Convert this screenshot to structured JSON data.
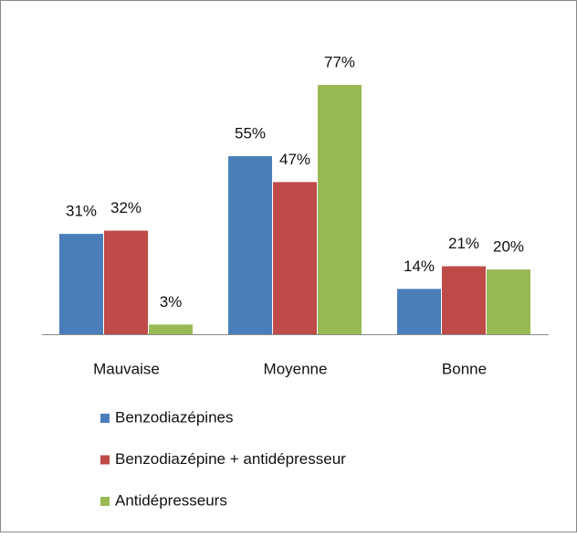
{
  "chart_data": {
    "type": "bar",
    "categories": [
      "Mauvaise",
      "Moyenne",
      "Bonne"
    ],
    "series": [
      {
        "name": "Benzodiazépines",
        "color": "#4a7ebb",
        "values": [
          31,
          55,
          14
        ],
        "value_labels": [
          "31%",
          "55%",
          "14%"
        ]
      },
      {
        "name": "Benzodiazépine + antidépresseur",
        "color": "#be4b48",
        "values": [
          32,
          47,
          21
        ],
        "value_labels": [
          "32%",
          "47%",
          "21%"
        ]
      },
      {
        "name": "Antidépresseurs",
        "color": "#98b954",
        "values": [
          3,
          77,
          20
        ],
        "value_labels": [
          "3%",
          "77%",
          "20%"
        ]
      }
    ]
  }
}
